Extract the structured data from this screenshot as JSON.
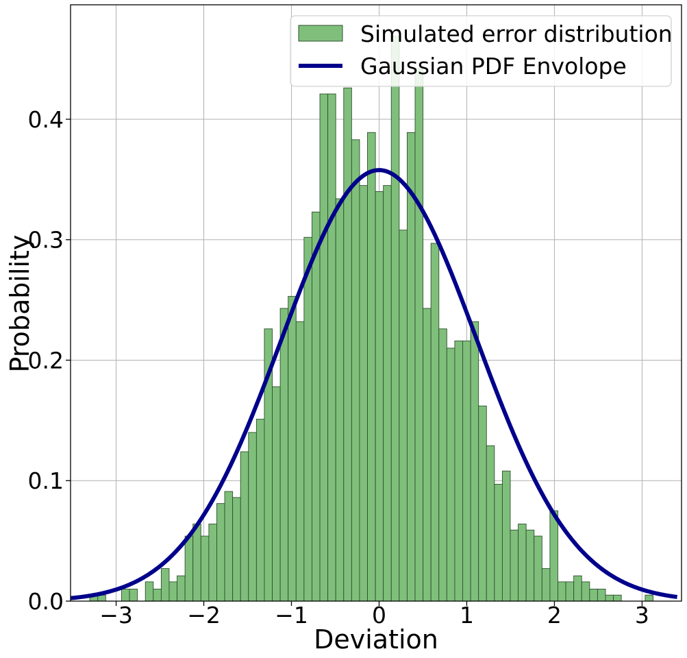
{
  "chart_data": {
    "type": "bar",
    "title": "",
    "xlabel": "Deviation",
    "ylabel": "Probability",
    "xlim": [
      -3.52,
      3.45
    ],
    "ylim": [
      0.0,
      0.495
    ],
    "grid": true,
    "legend_location": "top-right",
    "x_ticks": [
      -3,
      -2,
      -1,
      0,
      1,
      2,
      3
    ],
    "x_tick_labels": [
      "−3",
      "−2",
      "−1",
      "0",
      "1",
      "2",
      "3"
    ],
    "y_ticks": [
      0.0,
      0.1,
      0.2,
      0.3,
      0.4
    ],
    "y_tick_labels": [
      "0.0",
      "0.1",
      "0.2",
      "0.3",
      "0.4"
    ],
    "histogram": {
      "name": "Simulated error distribution",
      "color": "#7fbf7b",
      "edge_color": "#2f4f2f",
      "bin_start": -3.3,
      "bin_width": 0.0905,
      "values": [
        0.005,
        0.005,
        0.0,
        0.0,
        0.01,
        0.01,
        0.0,
        0.016,
        0.01,
        0.027,
        0.016,
        0.021,
        0.054,
        0.064,
        0.054,
        0.064,
        0.081,
        0.091,
        0.086,
        0.124,
        0.14,
        0.151,
        0.226,
        0.178,
        0.243,
        0.253,
        0.232,
        0.302,
        0.323,
        0.421,
        0.421,
        0.334,
        0.426,
        0.383,
        0.345,
        0.389,
        0.34,
        0.345,
        0.469,
        0.308,
        0.389,
        0.442,
        0.243,
        0.297,
        0.226,
        0.21,
        0.216,
        0.216,
        0.232,
        0.162,
        0.129,
        0.097,
        0.108,
        0.059,
        0.064,
        0.059,
        0.054,
        0.027,
        0.075,
        0.016,
        0.016,
        0.021,
        0.016,
        0.01,
        0.01,
        0.005,
        0.005,
        0.0,
        0.0,
        0.0,
        0.005
      ]
    },
    "pdf_curve": {
      "name": "Gaussian PDF Envolope",
      "color": "#00008b",
      "mean": 0.0,
      "std": 1.115
    }
  }
}
